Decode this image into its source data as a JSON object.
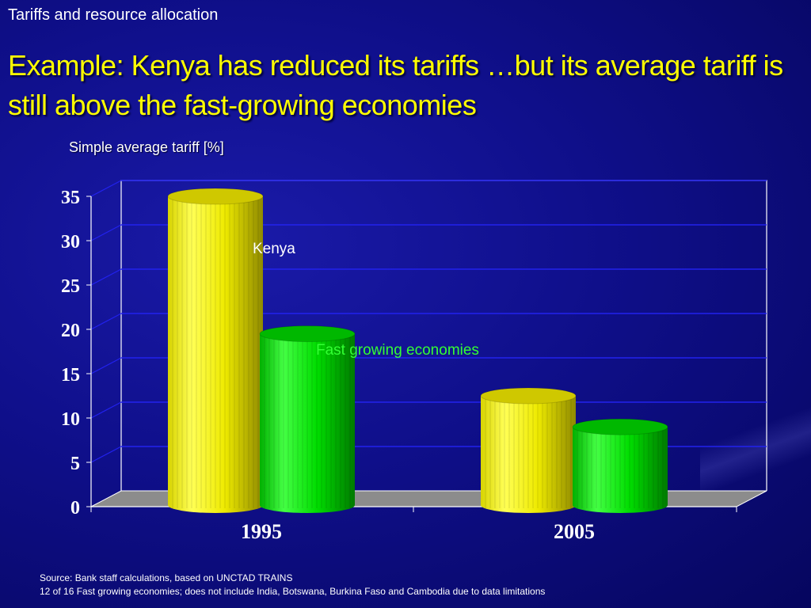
{
  "slide": {
    "section": "Tariffs and resource allocation",
    "title": "Example: Kenya has reduced its tariffs …but its average tariff is still above the fast-growing economies",
    "footnotes": [
      "Source: Bank staff calculations, based on UNCTAD TRAINS",
      "12 of 16 Fast growing economies; does not include India, Botswana, Burkina Faso and Cambodia due to data limitations"
    ]
  },
  "colors": {
    "kenya": "#f5f000",
    "fast_growing": "#00dd00",
    "fast_growing_label": "#33ff33",
    "floor": "#8c8c8c",
    "gridline": "#2222ee",
    "axis_text": "#ffffff"
  },
  "chart_data": {
    "type": "bar",
    "subtitle": "Simple average tariff [%]",
    "categories": [
      "1995",
      "2005"
    ],
    "series": [
      {
        "name": "Kenya",
        "values": [
          35,
          12.5
        ]
      },
      {
        "name": "Fast growing economies",
        "values": [
          19.5,
          9
        ]
      }
    ],
    "ylim": [
      0,
      35
    ],
    "yticks": [
      0,
      5,
      10,
      15,
      20,
      25,
      30,
      35
    ],
    "grid": true,
    "legend": "inline labels"
  }
}
